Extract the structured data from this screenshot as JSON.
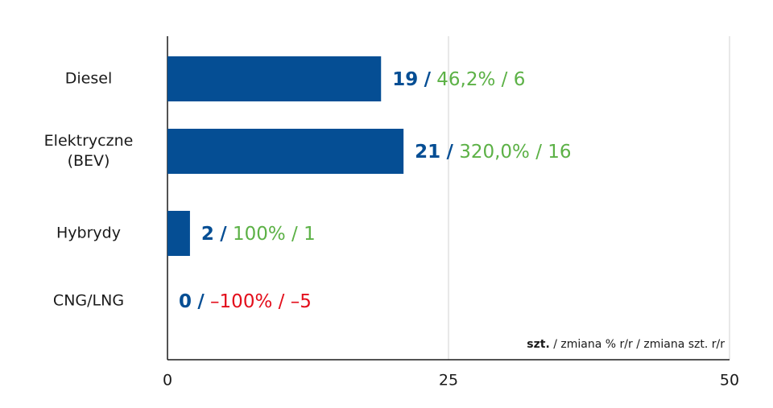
{
  "chart_data": {
    "type": "bar",
    "orientation": "horizontal",
    "categories": [
      "Diesel",
      "Elektryczne (BEV)",
      "Hybrydy",
      "CNG/LNG"
    ],
    "values": [
      19,
      21,
      2,
      0
    ],
    "color": "#054e94",
    "separator": "/",
    "change_pct_labels": [
      "46,2%",
      "320,0%",
      "100%",
      "–100%"
    ],
    "change_unit_labels": [
      "6",
      "16",
      "1",
      "–5"
    ],
    "change_colors": [
      "#5cb146",
      "#5cb146",
      "#5cb146",
      "#e30e1b"
    ],
    "xlim": [
      0,
      50
    ],
    "xticks": [
      0,
      25,
      50
    ],
    "grid": true,
    "unit_note": {
      "bold": "szt.",
      "rest": "/ zmiana % r/r / zmiana szt. r/r"
    }
  }
}
